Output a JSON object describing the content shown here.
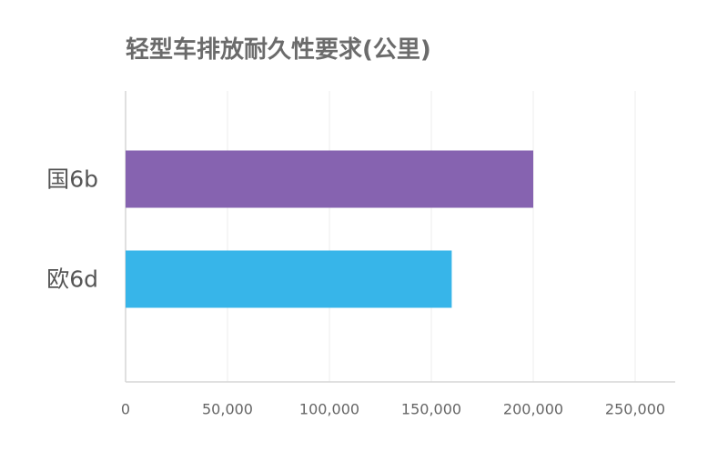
{
  "chart_data": {
    "type": "bar",
    "orientation": "horizontal",
    "title": "轻型车排放耐久性要求(公里)",
    "categories": [
      "国6b",
      "欧6d"
    ],
    "values": [
      200000,
      160000
    ],
    "colors": [
      "#8663b0",
      "#37b5e9"
    ],
    "xlim": [
      0,
      250000
    ],
    "xticks": [
      0,
      50000,
      100000,
      150000,
      200000,
      250000
    ],
    "xtick_labels": [
      "0",
      "50,000",
      "100,000",
      "150,000",
      "200,000",
      "250,000"
    ],
    "grid": true,
    "legend": "none"
  }
}
